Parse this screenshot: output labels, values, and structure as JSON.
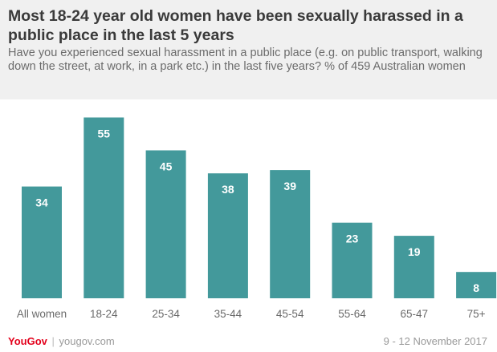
{
  "title": "Most 18-24 year old women have been sexually harassed in a public place in the last 5 years",
  "subtitle": "Have you experienced sexual harassment in a public place (e.g. on public transport, walking down the street, at work, in a park etc.) in the last five years? % of 459 Australian women",
  "chart_data": {
    "type": "bar",
    "categories": [
      "All women",
      "18-24",
      "25-34",
      "35-44",
      "45-54",
      "55-64",
      "65-47",
      "75+"
    ],
    "values": [
      34,
      55,
      45,
      38,
      39,
      23,
      19,
      8
    ],
    "ylim": [
      0,
      60
    ],
    "grid": false,
    "data_labels": true,
    "colors": {
      "bar": "#43999b",
      "label": "#ffffff",
      "axis_text": "#6b6b6b"
    }
  },
  "footer": {
    "brand": "YouGov",
    "separator": "|",
    "site": "yougov.com",
    "date": "9 - 12 November 2017"
  }
}
